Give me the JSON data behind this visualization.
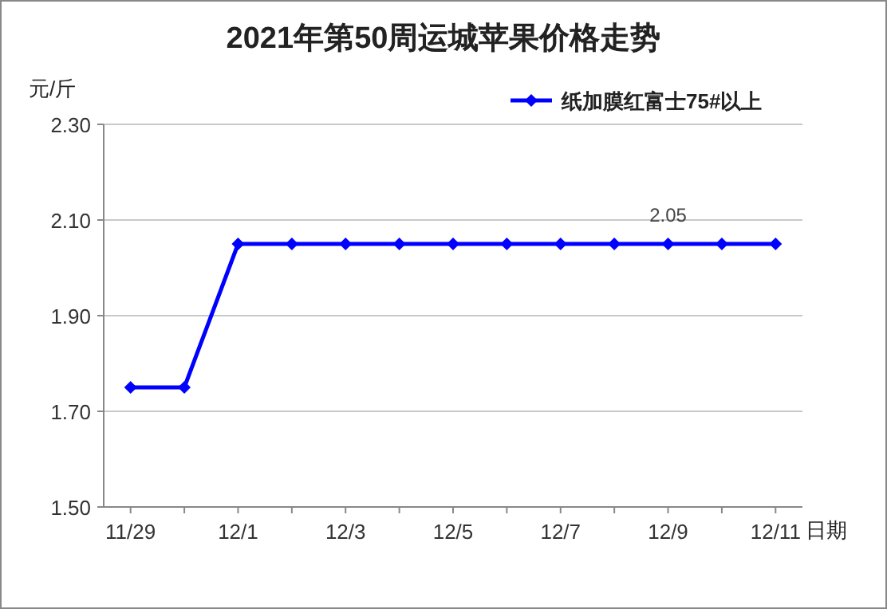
{
  "chart_data": {
    "type": "line",
    "title": "2021年第50周运城苹果价格走势",
    "ylabel": "元/斤",
    "xlabel": "日期",
    "categories": [
      "11/29",
      null,
      "12/1",
      null,
      "12/3",
      null,
      "12/5",
      null,
      "12/7",
      null,
      "12/9",
      null,
      "12/11"
    ],
    "series": [
      {
        "name": "纸加膜红富士75#以上",
        "color": "#0000ff",
        "values": [
          1.75,
          1.75,
          2.05,
          2.05,
          2.05,
          2.05,
          2.05,
          2.05,
          2.05,
          2.05,
          2.05,
          2.05,
          2.05
        ],
        "value_labels": [
          null,
          null,
          null,
          null,
          null,
          null,
          null,
          null,
          null,
          null,
          "2.05",
          null,
          null
        ]
      }
    ],
    "ylim": [
      1.5,
      2.3
    ],
    "yticks": [
      {
        "value": 1.5,
        "label": "1.50"
      },
      {
        "value": 1.7,
        "label": "1.70"
      },
      {
        "value": 1.9,
        "label": "1.90"
      },
      {
        "value": 2.1,
        "label": "2.10"
      },
      {
        "value": 2.3,
        "label": "2.30"
      }
    ],
    "grid": "y",
    "legend": "top right",
    "marker": "diamond",
    "line_style": "solid"
  }
}
